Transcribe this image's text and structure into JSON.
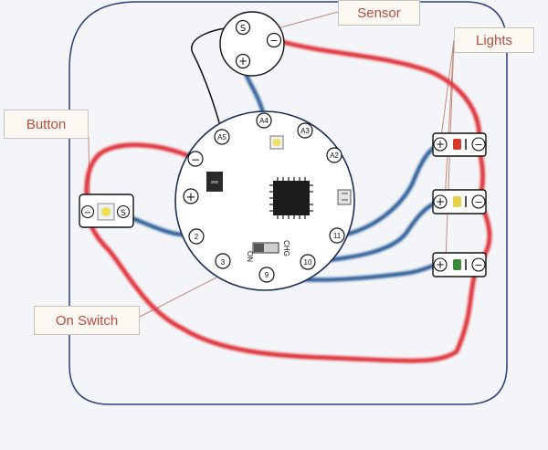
{
  "callouts": {
    "sensor": "Sensor",
    "lights": "Lights",
    "button": "Button",
    "on_switch": "On Switch"
  },
  "sensor": {
    "s": "S",
    "minus": "−",
    "plus": "+"
  },
  "board": {
    "pins": {
      "a5": "A5",
      "a4": "A4",
      "a3": "A3",
      "a2": "A2",
      "p11": "11",
      "p10": "10",
      "p9": "9",
      "p3": "3",
      "p2": "2"
    },
    "minus": "−",
    "plus": "+",
    "switch_on": "ON",
    "switch_chg": "CHG"
  },
  "button_module": {
    "minus": "−",
    "s": "S"
  },
  "lights": [
    {
      "color": "red",
      "plus": "+",
      "minus": "−",
      "led_hex": "#d63a2d"
    },
    {
      "color": "yellow",
      "plus": "+",
      "minus": "−",
      "led_hex": "#e6d24a"
    },
    {
      "color": "green",
      "plus": "+",
      "minus": "−",
      "led_hex": "#3b8a3a"
    }
  ],
  "colors": {
    "red_wire": "#e0363c",
    "blue_wire": "#2f5f9a",
    "outline": "#1d2c56",
    "label_text": "#b84b45"
  }
}
